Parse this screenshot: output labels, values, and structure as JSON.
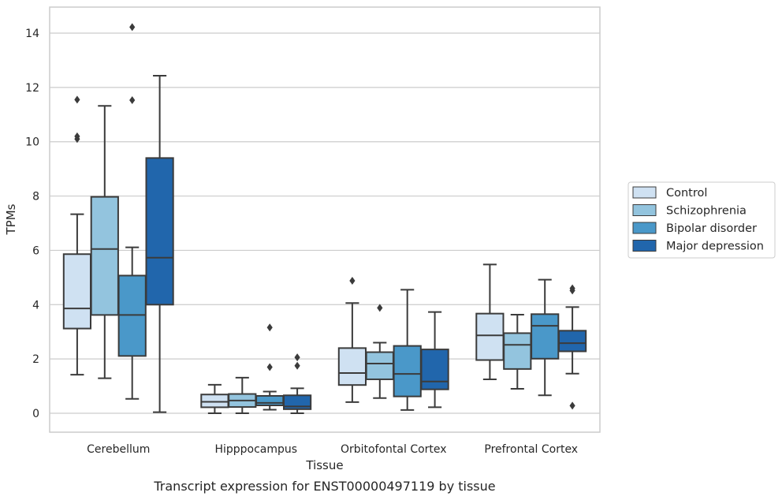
{
  "chart_data": {
    "type": "box",
    "caption": "Transcript expression for ENST00000497119 by tissue",
    "xlabel": "Tissue",
    "ylabel": "TPMs",
    "ylim": [
      -0.7,
      14.95
    ],
    "yticks": [
      0,
      2,
      4,
      6,
      8,
      10,
      12,
      14
    ],
    "grid": "horizontal",
    "legend_position": "right",
    "categories": [
      "Cerebellum",
      "Hipppocampus",
      "Orbitofontal Cortex",
      "Prefrontal Cortex"
    ],
    "series": [
      {
        "name": "Control",
        "color": "#cfe1f2",
        "boxes": [
          {
            "q1": 3.12,
            "median": 3.86,
            "q3": 5.86,
            "whisker_low": 1.42,
            "whisker_high": 7.33,
            "outliers": [
              11.55,
              10.2,
              10.1
            ]
          },
          {
            "q1": 0.22,
            "median": 0.42,
            "q3": 0.69,
            "whisker_low": 0.0,
            "whisker_high": 1.05,
            "outliers": []
          },
          {
            "q1": 1.04,
            "median": 1.48,
            "q3": 2.4,
            "whisker_low": 0.41,
            "whisker_high": 4.06,
            "outliers": [
              4.88
            ]
          },
          {
            "q1": 1.96,
            "median": 2.87,
            "q3": 3.67,
            "whisker_low": 1.25,
            "whisker_high": 5.48,
            "outliers": []
          }
        ]
      },
      {
        "name": "Schizophrenia",
        "color": "#93c4de",
        "boxes": [
          {
            "q1": 3.62,
            "median": 6.05,
            "q3": 7.97,
            "whisker_low": 1.29,
            "whisker_high": 11.32,
            "outliers": []
          },
          {
            "q1": 0.23,
            "median": 0.47,
            "q3": 0.71,
            "whisker_low": 0.0,
            "whisker_high": 1.31,
            "outliers": []
          },
          {
            "q1": 1.25,
            "median": 1.83,
            "q3": 2.25,
            "whisker_low": 0.56,
            "whisker_high": 2.6,
            "outliers": [
              3.88
            ]
          },
          {
            "q1": 1.63,
            "median": 2.52,
            "q3": 2.95,
            "whisker_low": 0.9,
            "whisker_high": 3.63,
            "outliers": []
          }
        ]
      },
      {
        "name": "Bipolar disorder",
        "color": "#4a98c9",
        "boxes": [
          {
            "q1": 2.11,
            "median": 3.62,
            "q3": 5.07,
            "whisker_low": 0.53,
            "whisker_high": 6.11,
            "outliers": [
              14.22,
              11.53
            ]
          },
          {
            "q1": 0.29,
            "median": 0.38,
            "q3": 0.64,
            "whisker_low": 0.13,
            "whisker_high": 0.8,
            "outliers": [
              3.16,
              1.7
            ]
          },
          {
            "q1": 0.62,
            "median": 1.45,
            "q3": 2.48,
            "whisker_low": 0.12,
            "whisker_high": 4.55,
            "outliers": []
          },
          {
            "q1": 2.01,
            "median": 3.22,
            "q3": 3.65,
            "whisker_low": 0.66,
            "whisker_high": 4.92,
            "outliers": []
          }
        ]
      },
      {
        "name": "Major depression",
        "color": "#2166ac",
        "boxes": [
          {
            "q1": 4.0,
            "median": 5.73,
            "q3": 9.4,
            "whisker_low": 0.04,
            "whisker_high": 12.43,
            "outliers": []
          },
          {
            "q1": 0.15,
            "median": 0.25,
            "q3": 0.66,
            "whisker_low": 0.0,
            "whisker_high": 0.92,
            "outliers": [
              2.06,
              1.75
            ]
          },
          {
            "q1": 0.88,
            "median": 1.17,
            "q3": 2.35,
            "whisker_low": 0.22,
            "whisker_high": 3.73,
            "outliers": []
          },
          {
            "q1": 2.28,
            "median": 2.58,
            "q3": 3.04,
            "whisker_low": 1.46,
            "whisker_high": 3.91,
            "outliers": [
              4.6,
              4.52,
              0.28
            ]
          }
        ]
      }
    ]
  }
}
